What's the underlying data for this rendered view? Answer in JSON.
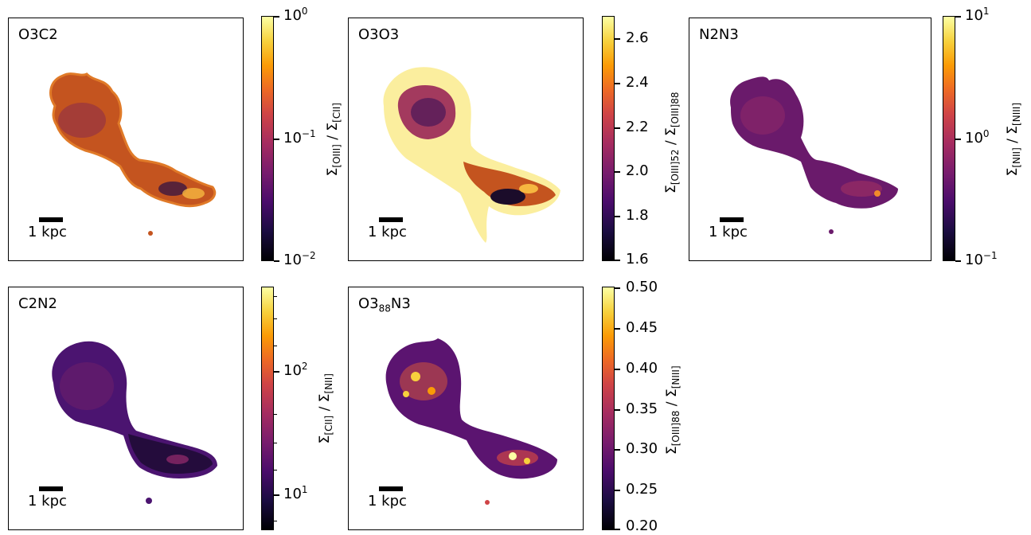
{
  "panels": [
    {
      "id": "O3C2",
      "title": "O3C2",
      "scalebar_label": "1 kpc",
      "colorbar": {
        "scale": "log",
        "ticks": [
          {
            "base": "10",
            "exp": "0"
          },
          {
            "base": "10",
            "exp": "−1"
          },
          {
            "base": "10",
            "exp": "−2"
          }
        ],
        "label_num": "Σ",
        "label_num_sub": "[OIII]",
        "label_sep": " / ",
        "label_den": "Σ",
        "label_den_sub": "[CII]"
      }
    },
    {
      "id": "O3O3",
      "title": "O3O3",
      "scalebar_label": "1 kpc",
      "colorbar": {
        "scale": "linear",
        "ticks": [
          "2.6",
          "2.4",
          "2.2",
          "2.0",
          "1.8",
          "1.6"
        ],
        "label_num": "Σ",
        "label_num_sub": "[OIII]52",
        "label_sep": " / ",
        "label_den": "Σ",
        "label_den_sub": "[OIII]88"
      }
    },
    {
      "id": "N2N3",
      "title": "N2N3",
      "scalebar_label": "1 kpc",
      "colorbar": {
        "scale": "log",
        "ticks": [
          {
            "base": "10",
            "exp": "1"
          },
          {
            "base": "10",
            "exp": "0"
          },
          {
            "base": "10",
            "exp": "−1"
          }
        ],
        "label_num": "Σ",
        "label_num_sub": "[NII]",
        "label_sep": " / ",
        "label_den": "Σ",
        "label_den_sub": "[NIII]"
      }
    },
    {
      "id": "C2N2",
      "title": "C2N2",
      "scalebar_label": "1 kpc",
      "colorbar": {
        "scale": "log",
        "ticks": [
          {
            "base": "10",
            "exp": "2"
          },
          {
            "base": "10",
            "exp": "1"
          }
        ],
        "label_num": "Σ",
        "label_num_sub": "[CII]",
        "label_sep": " / ",
        "label_den": "Σ",
        "label_den_sub": "[NII]"
      }
    },
    {
      "id": "O388N3",
      "title_main": "O3",
      "title_sub": "88",
      "title_tail": "N3",
      "scalebar_label": "1 kpc",
      "colorbar": {
        "scale": "linear",
        "ticks": [
          "0.50",
          "0.45",
          "0.40",
          "0.35",
          "0.30",
          "0.25",
          "0.20"
        ],
        "label_num": "Σ",
        "label_num_sub": "[OIII]88",
        "label_sep": " / ",
        "label_den": "Σ",
        "label_den_sub": "[NIII]"
      }
    }
  ],
  "colormap": "inferno"
}
